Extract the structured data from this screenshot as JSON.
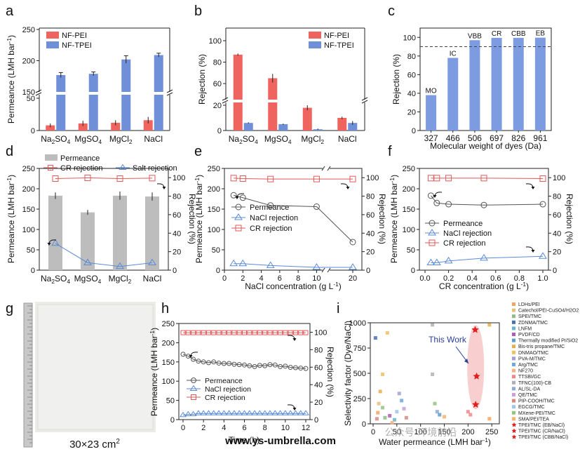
{
  "colors": {
    "pei": "#f0645f",
    "tpei": "#6f8fd8",
    "bar_c": "#7d9be0",
    "grey_bar": "#bdbdbd",
    "red_line": "#e05a5a",
    "blue_line": "#5b8bd6",
    "grey_line": "#555555",
    "ellipse": "#f7c6c6"
  },
  "panel_a": {
    "letter": "a",
    "ylabel": "Permeance (LMH bar",
    "ylabel_sup": "-1",
    "ylabel_end": ")",
    "legend": [
      "NF-PEI",
      "NF-TPEI"
    ],
    "categories": [
      [
        "Na",
        "2",
        "SO",
        "4"
      ],
      [
        "MgSO",
        "4",
        "",
        ""
      ],
      [
        "MgCl",
        "2",
        "",
        ""
      ],
      [
        "NaCl",
        "",
        "",
        ""
      ]
    ],
    "pei_values": [
      8,
      11,
      12,
      16
    ],
    "pei_err": [
      3,
      4,
      4,
      5
    ],
    "tpei_values": [
      177,
      179,
      202,
      209
    ],
    "tpei_err": [
      4,
      3,
      6,
      3
    ],
    "lower_ticks": [
      "0",
      "50"
    ],
    "upper_ticks": [
      "150",
      "200",
      "250"
    ]
  },
  "panel_b": {
    "letter": "b",
    "ylabel": "Rejection (%)",
    "legend": [
      "NF-PEI",
      "NF-TPEI"
    ],
    "categories": [
      [
        "Na",
        "2",
        "SO",
        "4"
      ],
      [
        "MgSO",
        "4",
        "",
        ""
      ],
      [
        "MgCl",
        "2",
        "",
        ""
      ],
      [
        "NaCl",
        "",
        "",
        ""
      ]
    ],
    "pei_values": [
      87,
      65,
      18,
      10
    ],
    "pei_err": [
      1,
      4,
      2,
      1
    ],
    "tpei_values": [
      6,
      5,
      1,
      6
    ],
    "tpei_err": [
      0.5,
      0.5,
      0.5,
      1.5
    ],
    "lower_ticks": [
      "0",
      "20"
    ],
    "upper_ticks": [
      "60",
      "80",
      "100"
    ]
  },
  "panel_c": {
    "letter": "c",
    "ylabel": "Rejection (%)",
    "xlabel": "Molecular weight of dyes (Da)",
    "categories": [
      "327",
      "466",
      "506",
      "697",
      "826",
      "961"
    ],
    "labels": [
      "MO",
      "IC",
      "VBB",
      "CR",
      "CBB",
      "EB"
    ],
    "values": [
      38,
      78,
      97,
      99.5,
      99.5,
      99.7
    ],
    "reference_line": 90,
    "yticks": [
      "0",
      "20",
      "40",
      "60",
      "80",
      "100"
    ]
  },
  "panel_d": {
    "letter": "d",
    "ylabel_left": "Permeance (LMH bar",
    "ylabel_right": "Rejection (%)",
    "legend": [
      "Permeance",
      "CR rejection",
      "Salt rejection"
    ],
    "categories": [
      [
        "Na",
        "2",
        "SO",
        "4"
      ],
      [
        "MgSO",
        "4",
        "",
        ""
      ],
      [
        "MgCl",
        "2",
        "",
        ""
      ],
      [
        "NaCl",
        "",
        "",
        ""
      ]
    ],
    "permeance": [
      183,
      142,
      183,
      181
    ],
    "permeance_err": [
      8,
      6,
      10,
      10
    ],
    "cr_rejection": [
      99,
      99.8,
      99,
      99.5
    ],
    "salt_rejection": [
      29,
      8,
      4,
      8
    ],
    "left_ticks": [
      "0",
      "50",
      "100",
      "150",
      "200",
      "250"
    ],
    "right_ticks": [
      "0",
      "20",
      "40",
      "60",
      "80",
      "100"
    ]
  },
  "panel_e": {
    "letter": "e",
    "xlabel": "NaCl concentration (g L",
    "ylabel_left": "Permeance (LMH bar",
    "ylabel_right": "Rejection (%)",
    "legend": [
      "Permeance",
      "NaCl rejection",
      "CR rejection"
    ],
    "x": [
      1,
      2,
      5,
      10,
      20
    ],
    "permeance": [
      184,
      178,
      159,
      156,
      69
    ],
    "nacl_rejection": [
      7,
      7,
      5,
      3,
      3
    ],
    "cr_rejection": [
      99.5,
      99,
      98.5,
      98.5,
      98.5
    ],
    "xticks": [
      "0",
      "2",
      "4",
      "6",
      "8",
      "10",
      "20"
    ],
    "left_ticks": [
      "0",
      "50",
      "100",
      "150",
      "200",
      "250"
    ],
    "right_ticks": [
      "0",
      "20",
      "40",
      "60",
      "80",
      "100"
    ]
  },
  "panel_f": {
    "letter": "f",
    "xlabel": "CR concentration (g L",
    "ylabel_left": "Permeance (LMH bar",
    "ylabel_right": "Rejection (%)",
    "legend": [
      "Permeance",
      "NaCl rejection",
      "CR rejection"
    ],
    "x": [
      0.05,
      0.1,
      0.2,
      0.5,
      1.0
    ],
    "permeance": [
      183,
      165,
      162,
      160,
      162
    ],
    "nacl_rejection": [
      8,
      8,
      10,
      13,
      15
    ],
    "cr_rejection": [
      99.5,
      99.5,
      99.5,
      99.5,
      99
    ],
    "xticks": [
      "0.0",
      "0.2",
      "0.4",
      "0.6",
      "0.8",
      "1.0"
    ],
    "left_ticks": [
      "0",
      "50",
      "100",
      "150",
      "200",
      "250"
    ],
    "right_ticks": [
      "0",
      "20",
      "40",
      "60",
      "80",
      "100"
    ]
  },
  "panel_g": {
    "letter": "g",
    "caption": "30×23 cm",
    "caption_sup": "2"
  },
  "panel_h": {
    "letter": "h",
    "xlabel": "Time (h)",
    "ylabel_left": "Permeance (LMH bar",
    "ylabel_right": "Rejection (%)",
    "legend": [
      "Permeance",
      "NaCl rejection",
      "CR rejection"
    ],
    "x": [
      0,
      0.5,
      1,
      1.5,
      2,
      2.5,
      3,
      3.5,
      4,
      4.5,
      5,
      5.5,
      6,
      6.5,
      7,
      7.5,
      8,
      8.5,
      9,
      9.5,
      10,
      10.5,
      11,
      11.5,
      12
    ],
    "permeance": [
      170,
      165,
      157,
      152,
      150,
      148,
      150,
      147,
      146,
      146,
      144,
      143,
      142,
      140,
      138,
      141,
      140,
      143,
      142,
      138,
      139,
      136,
      135,
      134,
      133
    ],
    "nacl_rejection": [
      5,
      6,
      6,
      7,
      7,
      7,
      7,
      7,
      7,
      7,
      7,
      7,
      7,
      7,
      7,
      7,
      7,
      7,
      7,
      7,
      7,
      7,
      7,
      7,
      7
    ],
    "cr_rejection": [
      99.5,
      99.5,
      99.5,
      99.5,
      99.5,
      99.5,
      99.5,
      99.5,
      99.5,
      99.5,
      99.5,
      99.5,
      99.5,
      99.5,
      99.5,
      99.5,
      99.5,
      99.5,
      99.5,
      99.5,
      99.5,
      99.5,
      99.5,
      99.5,
      99.5
    ],
    "xticks": [
      "0",
      "2",
      "4",
      "6",
      "8",
      "10",
      "12"
    ],
    "left_ticks": [
      "0",
      "50",
      "100",
      "150",
      "200",
      "250"
    ],
    "right_ticks": [
      "0",
      "20",
      "40",
      "60",
      "80",
      "100"
    ]
  },
  "panel_i": {
    "letter": "i",
    "xlabel": "Water permeance (LMH bar",
    "ylabel": "Selectivity factor (Dye/NaCl)",
    "annotation": "This Work",
    "xticks": [
      "0",
      "50",
      "100",
      "150",
      "200",
      "250"
    ],
    "yticks": [
      "0",
      "250",
      "500",
      "750",
      "1000"
    ],
    "legend": [
      "LDHs/PEI",
      "Catechol/PEI-CuSO4/H2O2",
      "SPEI/TMC",
      "ZDNMA/TMC",
      "LNFM",
      "PVDF/CD",
      "Thermally modified PI/SiO2",
      "Bis-tris propane/TMC",
      "DNMAO/TMC",
      "PVA-M/TMC",
      "Arg/TMC",
      "NF270",
      "TTSBI/GC",
      "TFNC(100)-CB",
      "AL/SL-DA",
      "QE/TMC",
      "PIP-COOH/TMC",
      "EGCG/TMC",
      "MXene-PEI/TMC",
      "SMA/PEI/TEA",
      "TPEI/TMC (EB/NaCl)",
      "TPEI/TMC (CR/NaCl)",
      "TPEI/TMC (CBB/NaCl)"
    ],
    "legend_colors": [
      "#f4a460",
      "#e8c07d",
      "#8fbc8f",
      "#4a6fb5",
      "#6cb2c9",
      "#b35cb3",
      "#5aa0c8",
      "#e3b04b",
      "#f0c060",
      "#a0a0d0",
      "#6fa8dc",
      "#f4b183",
      "#e88",
      "#b0b0b0",
      "#8ea9db",
      "#c9a0dc",
      "#d98880",
      "#9fc5e8",
      "#93c47d",
      "#f6b26b",
      "#e02020",
      "#e02020",
      "#e02020"
    ],
    "points": [
      {
        "x": 10,
        "y": 110,
        "c": "#f4a460"
      },
      {
        "x": 12,
        "y": 200,
        "c": "#e8c07d"
      },
      {
        "x": 15,
        "y": 320,
        "c": "#e3b04b"
      },
      {
        "x": 20,
        "y": 490,
        "c": "#f0c060"
      },
      {
        "x": 30,
        "y": 900,
        "c": "#f0c060"
      },
      {
        "x": 5,
        "y": 850,
        "c": "#4a6fb5"
      },
      {
        "x": 25,
        "y": 60,
        "c": "#8fbc8f"
      },
      {
        "x": 35,
        "y": 80,
        "c": "#b35cb3"
      },
      {
        "x": 45,
        "y": 40,
        "c": "#6cb2c9"
      },
      {
        "x": 50,
        "y": 120,
        "c": "#9fc5e8"
      },
      {
        "x": 55,
        "y": 300,
        "c": "#a0a0d0"
      },
      {
        "x": 60,
        "y": 230,
        "c": "#6fa8dc"
      },
      {
        "x": 40,
        "y": 10,
        "c": "#f4b183"
      },
      {
        "x": 65,
        "y": 150,
        "c": "#c9a0dc"
      },
      {
        "x": 70,
        "y": 60,
        "c": "#d98880"
      },
      {
        "x": 125,
        "y": 980,
        "c": "#b0b0b0"
      },
      {
        "x": 125,
        "y": 490,
        "c": "#b0b0b0"
      },
      {
        "x": 130,
        "y": 200,
        "c": "#93c47d"
      },
      {
        "x": 135,
        "y": 120,
        "c": "#8ea9db"
      },
      {
        "x": 140,
        "y": 90,
        "c": "#5aa0c8"
      },
      {
        "x": 150,
        "y": 70,
        "c": "#f6b26b"
      },
      {
        "x": 200,
        "y": 120,
        "c": "#e88"
      },
      {
        "x": 205,
        "y": 90,
        "c": "#e88"
      },
      {
        "x": 245,
        "y": 980,
        "c": "#e3b04b"
      },
      {
        "x": 245,
        "y": 50,
        "c": "#f4a460"
      },
      {
        "x": 20,
        "y": 160,
        "c": "#93c47d"
      },
      {
        "x": 8,
        "y": 50,
        "c": "#d98880"
      }
    ],
    "this_work": [
      {
        "x": 215,
        "y": 930
      },
      {
        "x": 218,
        "y": 470
      },
      {
        "x": 216,
        "y": 190
      }
    ]
  },
  "watermark": "www.ys-umbrella.com",
  "watermark2": "公众号·环境前沿"
}
